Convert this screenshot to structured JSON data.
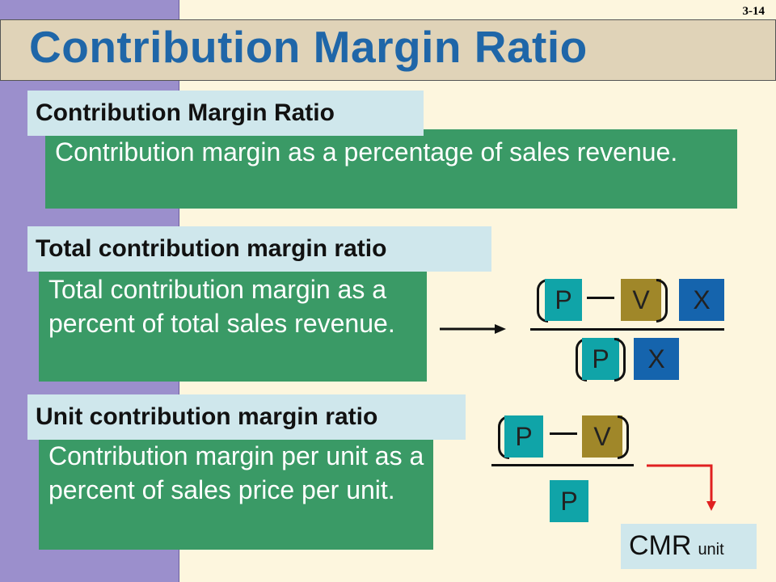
{
  "slide": {
    "number": "3-14",
    "title": "Contribution Margin Ratio"
  },
  "sections": [
    {
      "heading": "Contribution Margin Ratio",
      "definition": "Contribution margin as a percentage of sales revenue."
    },
    {
      "heading": "Total contribution margin ratio",
      "definition": "Total contribution margin as a percent of total sales revenue."
    },
    {
      "heading": "Unit contribution margin ratio",
      "definition": "Contribution margin per unit as a percent of sales price per unit."
    }
  ],
  "formula_total": {
    "numerator": [
      "P",
      "V",
      "X"
    ],
    "denominator": [
      "P",
      "X"
    ]
  },
  "formula_unit": {
    "numerator": [
      "P",
      "V"
    ],
    "denominator": [
      "P"
    ]
  },
  "result": {
    "label": "CMR",
    "subscript": "unit"
  },
  "colors": {
    "title": "#1f66a8",
    "left_band": "#9b8fcc",
    "title_bar": "#e0d3b8",
    "background": "#fdf6de",
    "green_box": "#3a9a66",
    "heading_box": "#cfe7ec",
    "tile_p": "#10a4a8",
    "tile_v": "#a08729",
    "tile_x": "#1564ad",
    "arrow_red": "#e02020"
  },
  "icons": [
    "right-arrow-icon",
    "elbow-arrow-icon"
  ]
}
